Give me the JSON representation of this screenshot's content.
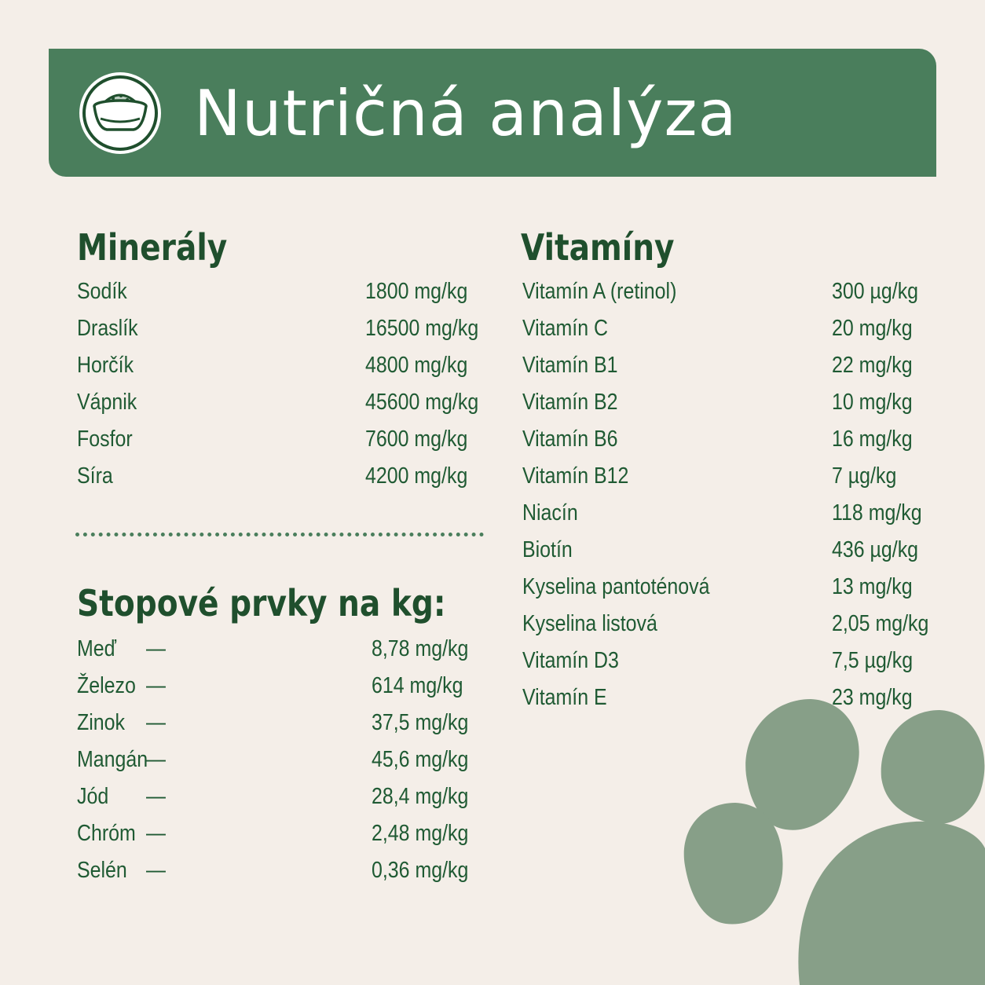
{
  "header": {
    "title": "Nutričná analýza",
    "icon": "food-bowl-icon"
  },
  "colors": {
    "background": "#f4eee8",
    "accent": "#4a7e5c",
    "text": "#1f5a33",
    "paw": "#879f88"
  },
  "minerals": {
    "title": "Minerály",
    "items": [
      {
        "label": "Sodík",
        "value": "1800 mg/kg"
      },
      {
        "label": "Draslík",
        "value": "16500 mg/kg"
      },
      {
        "label": "Horčík",
        "value": "4800 mg/kg"
      },
      {
        "label": "Vápnik",
        "value": "45600 mg/kg"
      },
      {
        "label": "Fosfor",
        "value": "7600 mg/kg"
      },
      {
        "label": "Síra",
        "value": "4200 mg/kg"
      }
    ]
  },
  "trace": {
    "title": "Stopové prvky na kg:",
    "items": [
      {
        "label": "Meď",
        "dash": "—",
        "value": "8,78 mg/kg"
      },
      {
        "label": "Železo",
        "dash": "—",
        "value": "614 mg/kg"
      },
      {
        "label": "Zinok",
        "dash": "—",
        "value": "37,5 mg/kg"
      },
      {
        "label": "Mangán",
        "dash": "—",
        "value": "45,6 mg/kg"
      },
      {
        "label": "Jód",
        "dash": "—",
        "value": "28,4 mg/kg"
      },
      {
        "label": "Chróm",
        "dash": "—",
        "value": "2,48 mg/kg"
      },
      {
        "label": "Selén",
        "dash": "—",
        "value": "0,36 mg/kg"
      }
    ]
  },
  "vitamins": {
    "title": "Vitamíny",
    "items": [
      {
        "label": "Vitamín A (retinol)",
        "value": "300 µg/kg"
      },
      {
        "label": "Vitamín C",
        "value": "20 mg/kg"
      },
      {
        "label": "Vitamín B1",
        "value": "22 mg/kg"
      },
      {
        "label": "Vitamín B2",
        "value": "10 mg/kg"
      },
      {
        "label": "Vitamín B6",
        "value": "16 mg/kg"
      },
      {
        "label": "Vitamín B12",
        "value": "7 µg/kg"
      },
      {
        "label": "Niacín",
        "value": "118 mg/kg"
      },
      {
        "label": "Biotín",
        "value": "436 µg/kg"
      },
      {
        "label": "Kyselina pantoténová",
        "value": "13 mg/kg"
      },
      {
        "label": "Kyselina listová",
        "value": "2,05 mg/kg"
      },
      {
        "label": "Vitamín D3",
        "value": "7,5 µg/kg"
      },
      {
        "label": "Vitamín E",
        "value": "23 mg/kg"
      }
    ]
  },
  "decoration": {
    "icon": "paw-print-icon"
  }
}
